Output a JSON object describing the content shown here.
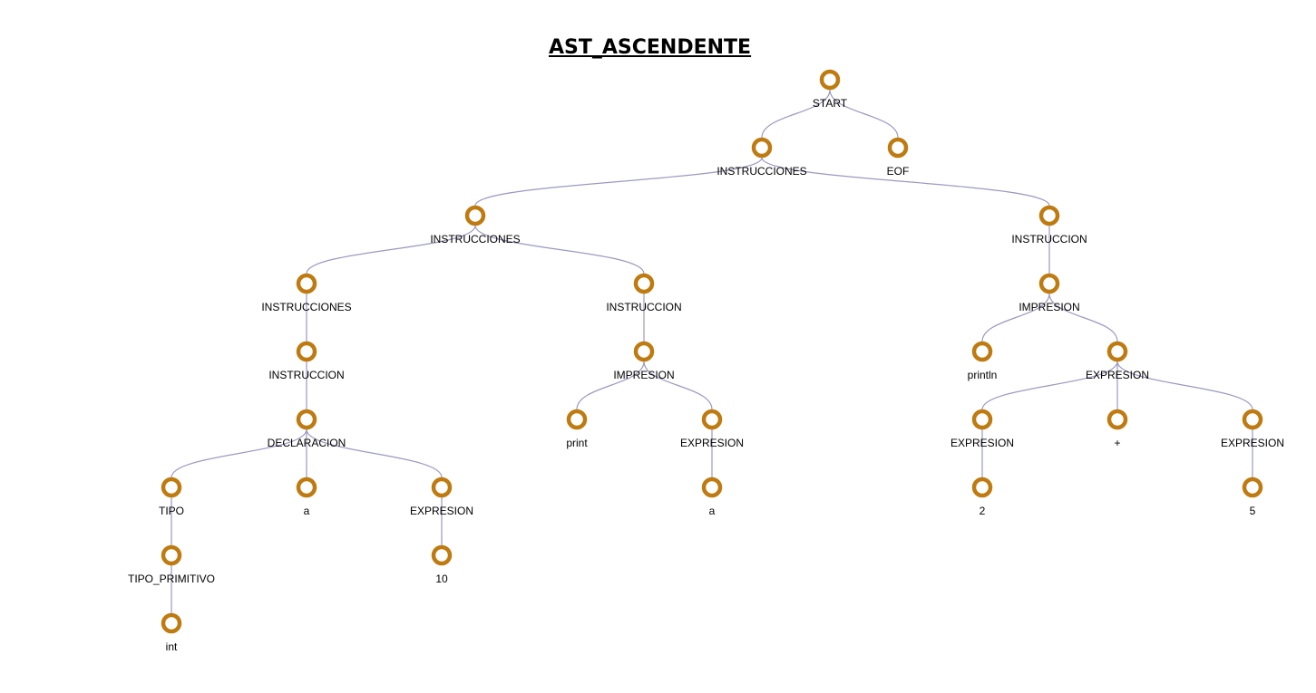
{
  "title": "AST_ASCENDENTE",
  "colors": {
    "node_stroke": "#bf7a10",
    "edge": "#9b98c2"
  },
  "tree": {
    "label": "START",
    "children": [
      {
        "label": "INSTRUCCIONES",
        "children": [
          {
            "label": "INSTRUCCIONES",
            "children": [
              {
                "label": "INSTRUCCIONES",
                "children": [
                  {
                    "label": "INSTRUCCION",
                    "children": [
                      {
                        "label": "DECLARACION",
                        "children": [
                          {
                            "label": "TIPO",
                            "children": [
                              {
                                "label": "TIPO_PRIMITIVO",
                                "children": [
                                  {
                                    "label": "int"
                                  }
                                ]
                              }
                            ]
                          },
                          {
                            "label": "a"
                          },
                          {
                            "label": "EXPRESION",
                            "children": [
                              {
                                "label": "10"
                              }
                            ]
                          }
                        ]
                      }
                    ]
                  }
                ]
              },
              {
                "label": "INSTRUCCION",
                "children": [
                  {
                    "label": "IMPRESION",
                    "children": [
                      {
                        "label": "print"
                      },
                      {
                        "label": "EXPRESION",
                        "children": [
                          {
                            "label": "a"
                          }
                        ]
                      }
                    ]
                  }
                ]
              }
            ]
          },
          {
            "label": "INSTRUCCION",
            "children": [
              {
                "label": "IMPRESION",
                "children": [
                  {
                    "label": "println"
                  },
                  {
                    "label": "EXPRESION",
                    "children": [
                      {
                        "label": "EXPRESION",
                        "children": [
                          {
                            "label": "2"
                          }
                        ]
                      },
                      {
                        "label": "+"
                      },
                      {
                        "label": "EXPRESION",
                        "children": [
                          {
                            "label": "5"
                          }
                        ]
                      }
                    ]
                  }
                ]
              }
            ]
          }
        ]
      },
      {
        "label": "EOF"
      }
    ]
  }
}
